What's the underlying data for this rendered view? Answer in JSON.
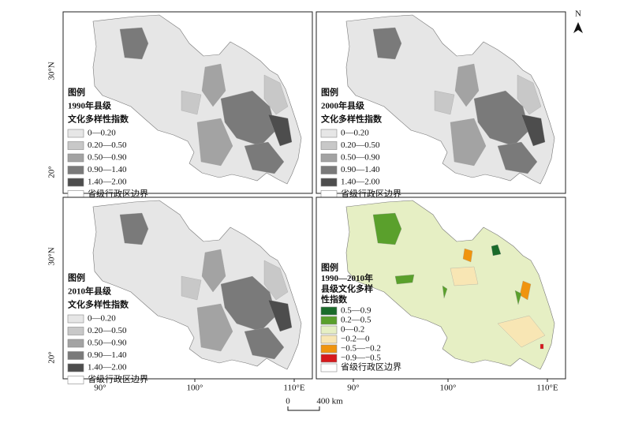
{
  "north_label": "N",
  "axes": {
    "y_labels": [
      "30°N",
      "20°"
    ],
    "x_labels": [
      "90°",
      "100°",
      "110°E"
    ]
  },
  "scale_bar": {
    "start": "0",
    "end": "400 km"
  },
  "panels": [
    {
      "legend": {
        "title": "图例",
        "subtitle": [
          "1990年县级",
          "文化多样性指数"
        ],
        "items": [
          {
            "label": "0—0.20",
            "color": "#e6e6e6"
          },
          {
            "label": "0.20—0.50",
            "color": "#c8c8c8"
          },
          {
            "label": "0.50—0.90",
            "color": "#a3a3a3"
          },
          {
            "label": "0.90—1.40",
            "color": "#7a7a7a"
          },
          {
            "label": "1.40—2.00",
            "color": "#4d4d4d"
          },
          {
            "label": "省级行政区边界",
            "color": "#ffffff"
          }
        ]
      }
    },
    {
      "legend": {
        "title": "图例",
        "subtitle": [
          "2000年县级",
          "文化多样性指数"
        ],
        "items": [
          {
            "label": "0—0.20",
            "color": "#e6e6e6"
          },
          {
            "label": "0.20—0.50",
            "color": "#c8c8c8"
          },
          {
            "label": "0.50—0.90",
            "color": "#a3a3a3"
          },
          {
            "label": "0.90—1.40",
            "color": "#7a7a7a"
          },
          {
            "label": "1.40—2.00",
            "color": "#4d4d4d"
          },
          {
            "label": "省级行政区边界",
            "color": "#ffffff"
          }
        ]
      }
    },
    {
      "legend": {
        "title": "图例",
        "subtitle": [
          "2010年县级",
          "文化多样性指数"
        ],
        "items": [
          {
            "label": "0—0.20",
            "color": "#e6e6e6"
          },
          {
            "label": "0.20—0.50",
            "color": "#c8c8c8"
          },
          {
            "label": "0.50—0.90",
            "color": "#a3a3a3"
          },
          {
            "label": "0.90—1.40",
            "color": "#7a7a7a"
          },
          {
            "label": "1.40—2.00",
            "color": "#4d4d4d"
          },
          {
            "label": "省级行政区边界",
            "color": "#ffffff"
          }
        ]
      }
    },
    {
      "legend": {
        "title": "图例",
        "subtitle": [
          "1990—2010年",
          "县级文化多样",
          "性指数"
        ],
        "items": [
          {
            "label": "0.5—0.9",
            "color": "#1a6b2a"
          },
          {
            "label": "0.2—0.5",
            "color": "#5aa02c"
          },
          {
            "label": "0—0.2",
            "color": "#e6efc4"
          },
          {
            "label": "−0.2—0",
            "color": "#f8e6b4"
          },
          {
            "label": "−0.5—−0.2",
            "color": "#f0940e"
          },
          {
            "label": "−0.9—−0.5",
            "color": "#d7191c"
          },
          {
            "label": "省级行政区边界",
            "color": "#ffffff"
          }
        ]
      }
    }
  ]
}
